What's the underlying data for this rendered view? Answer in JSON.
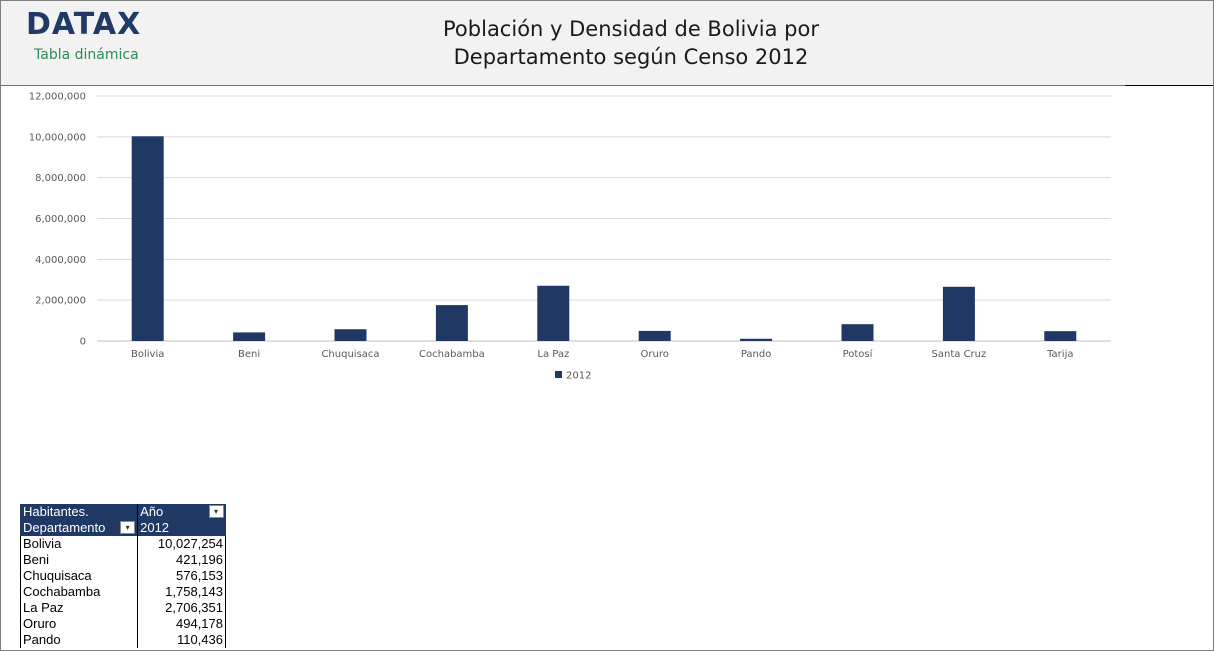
{
  "header": {
    "logo": "DATAX",
    "logo_subtitle": "Tabla dinámica",
    "title_line1": "Población y Densidad de Bolivia por",
    "title_line2": "Departamento según Censo 2012"
  },
  "chart_data": {
    "type": "bar",
    "categories": [
      "Bolivia",
      "Beni",
      "Chuquisaca",
      "Cochabamba",
      "La Paz",
      "Oruro",
      "Pando",
      "Potosí",
      "Santa Cruz",
      "Tarija"
    ],
    "series": [
      {
        "name": "2012",
        "values": [
          10027254,
          421196,
          576153,
          1758143,
          2706351,
          494178,
          110436,
          823517,
          2655084,
          482196
        ]
      }
    ],
    "ylim": [
      0,
      12000000
    ],
    "yticks": [
      "0",
      "2,000,000",
      "4,000,000",
      "6,000,000",
      "8,000,000",
      "10,000,000",
      "12,000,000"
    ],
    "ytick_values": [
      0,
      2000000,
      4000000,
      6000000,
      8000000,
      10000000,
      12000000
    ],
    "grid": true,
    "legend_position": "bottom",
    "colors": {
      "bar": "#203864",
      "grid": "#d9d9d9"
    }
  },
  "pivot": {
    "header_row1": {
      "col1": "Habitantes.",
      "col2": "Año"
    },
    "header_row2": {
      "col1": "Departamento",
      "col2": "2012"
    },
    "rows": [
      {
        "label": "Bolivia",
        "value": "10,027,254"
      },
      {
        "label": "Beni",
        "value": "421,196"
      },
      {
        "label": "Chuquisaca",
        "value": "576,153"
      },
      {
        "label": "Cochabamba",
        "value": "1,758,143"
      },
      {
        "label": "La Paz",
        "value": "2,706,351"
      },
      {
        "label": "Oruro",
        "value": "494,178"
      },
      {
        "label": "Pando",
        "value": "110,436"
      }
    ]
  }
}
